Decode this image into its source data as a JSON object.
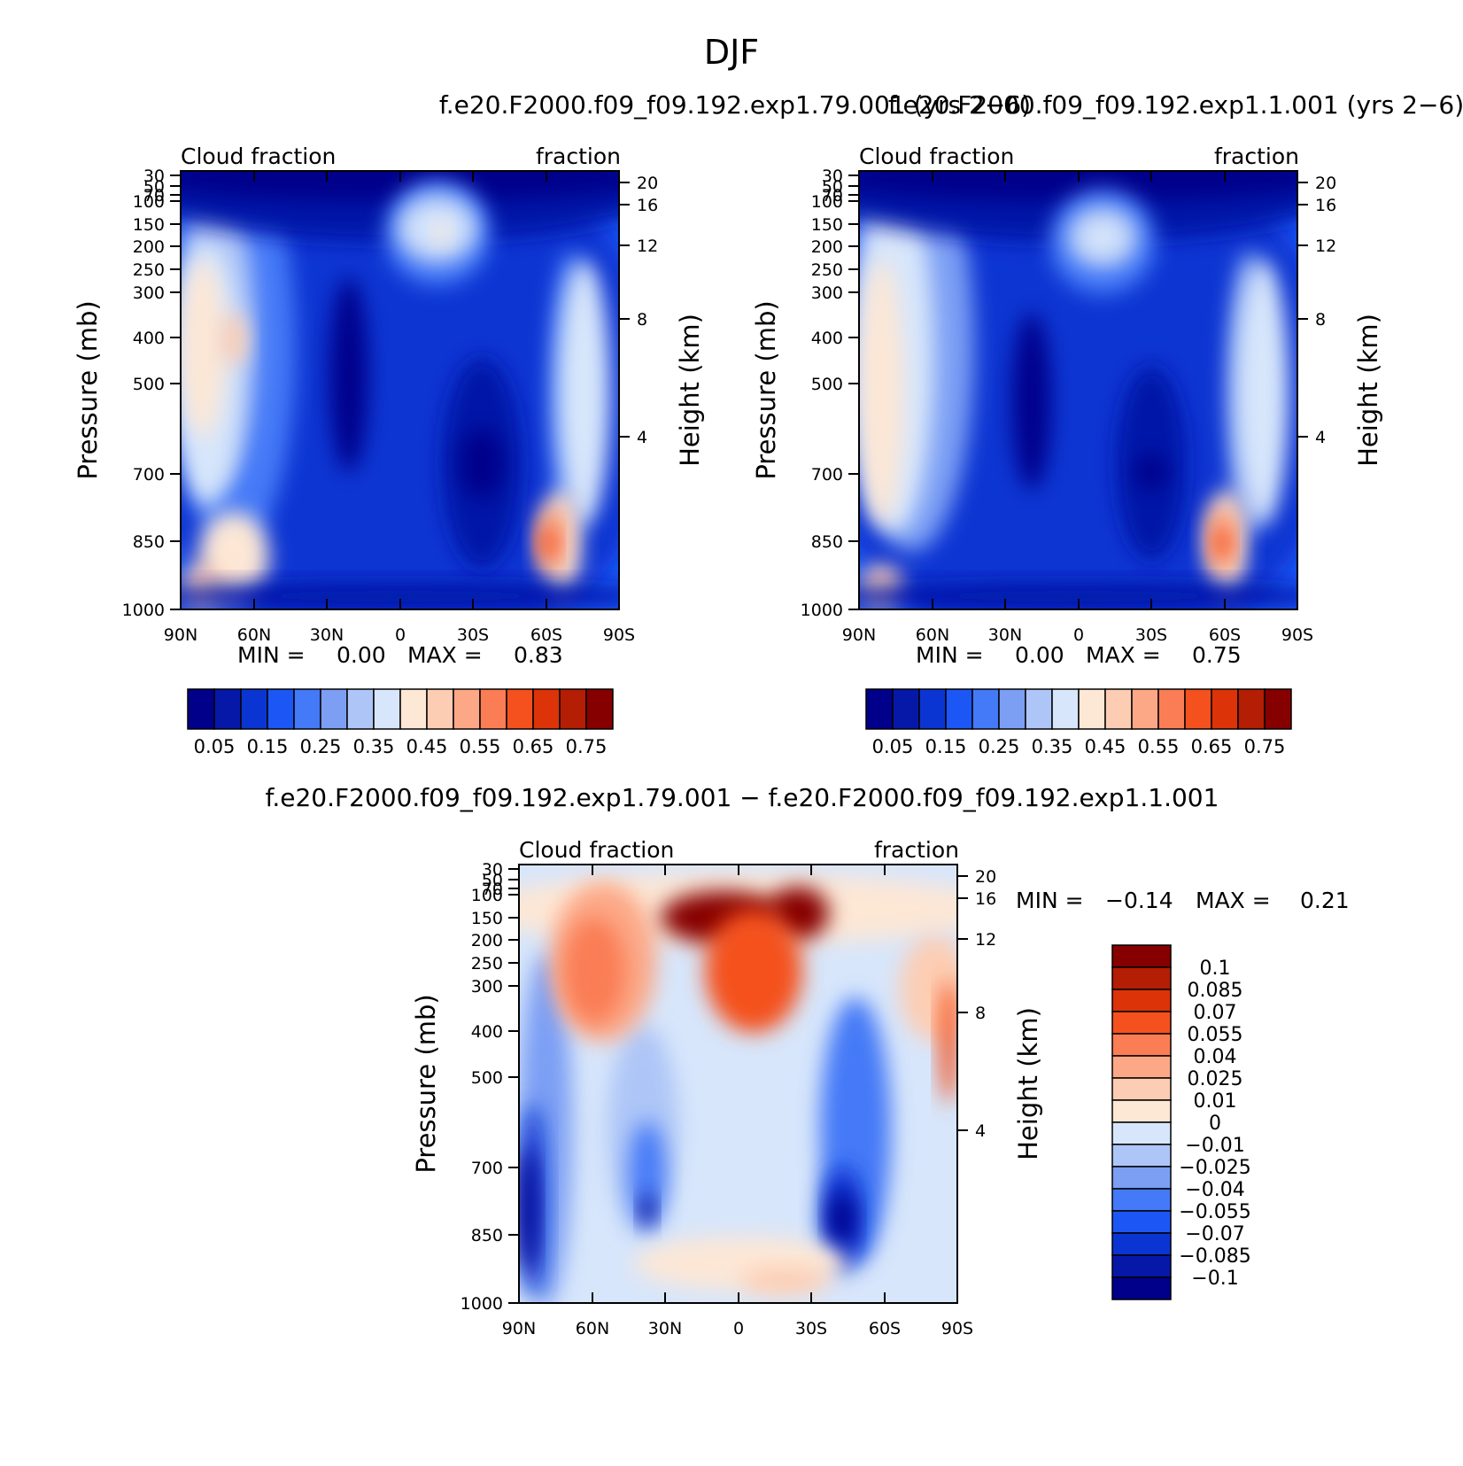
{
  "title": "DJF",
  "colors": {
    "abs_levels": [
      "#00008a",
      "#0618a8",
      "#0b35d2",
      "#1c57f5",
      "#4479f7",
      "#7c9ff4",
      "#aec6f7",
      "#d7e6fb",
      "#fde7d5",
      "#fdcdb3",
      "#fca887",
      "#fa7d55",
      "#f4511f",
      "#dc3309",
      "#b31e04",
      "#860000"
    ],
    "diff_levels": [
      "#00008a",
      "#0618a8",
      "#0b35d2",
      "#1c57f5",
      "#4479f7",
      "#7c9ff4",
      "#aec6f7",
      "#d7e6fb",
      "#fde7d5",
      "#fdcdb3",
      "#fca887",
      "#fa7d55",
      "#f4511f",
      "#dc3309",
      "#b31e04",
      "#860000"
    ]
  },
  "chart_data": [
    {
      "type": "heatmap",
      "panel": "top-left",
      "title": "f.e20.F2000.f09_f09.192.exp1.79.001 (yrs 2−6)",
      "left_label": "Cloud fraction",
      "right_label": "fraction",
      "ylabel": "Pressure (mb)",
      "y2label": "Height (km)",
      "xticks": [
        "90N",
        "60N",
        "30N",
        "0",
        "30S",
        "60S",
        "90S"
      ],
      "yticks": [
        "30",
        "50",
        "70",
        "100",
        "150",
        "200",
        "250",
        "300",
        "400",
        "500",
        "700",
        "850",
        "1000"
      ],
      "y2ticks": [
        "20",
        "16",
        "12",
        "8",
        "4"
      ],
      "xlim": [
        -90,
        90
      ],
      "ylim": [
        30,
        1000
      ],
      "min_label": "MIN =",
      "min_value": "0.00",
      "max_label": "MAX =",
      "max_value": "0.83",
      "colorbar_labels": [
        "0.05",
        "0.15",
        "0.25",
        "0.35",
        "0.45",
        "0.55",
        "0.65",
        "0.75"
      ],
      "levels": [
        0.05,
        0.1,
        0.15,
        0.2,
        0.25,
        0.3,
        0.35,
        0.4,
        0.45,
        0.5,
        0.55,
        0.6,
        0.65,
        0.7,
        0.75
      ]
    },
    {
      "type": "heatmap",
      "panel": "top-right",
      "title": "f.e20.F2000.f09_f09.192.exp1.1.001 (yrs 2−6)",
      "left_label": "Cloud fraction",
      "right_label": "fraction",
      "ylabel": "Pressure (mb)",
      "y2label": "Height (km)",
      "xticks": [
        "90N",
        "60N",
        "30N",
        "0",
        "30S",
        "60S",
        "90S"
      ],
      "yticks": [
        "30",
        "50",
        "70",
        "100",
        "150",
        "200",
        "250",
        "300",
        "400",
        "500",
        "700",
        "850",
        "1000"
      ],
      "y2ticks": [
        "20",
        "16",
        "12",
        "8",
        "4"
      ],
      "xlim": [
        -90,
        90
      ],
      "ylim": [
        30,
        1000
      ],
      "min_label": "MIN =",
      "min_value": "0.00",
      "max_label": "MAX =",
      "max_value": "0.75",
      "colorbar_labels": [
        "0.05",
        "0.15",
        "0.25",
        "0.35",
        "0.45",
        "0.55",
        "0.65",
        "0.75"
      ],
      "levels": [
        0.05,
        0.1,
        0.15,
        0.2,
        0.25,
        0.3,
        0.35,
        0.4,
        0.45,
        0.5,
        0.55,
        0.6,
        0.65,
        0.7,
        0.75
      ]
    },
    {
      "type": "heatmap",
      "panel": "bottom",
      "title": "f.e20.F2000.f09_f09.192.exp1.79.001 − f.e20.F2000.f09_f09.192.exp1.1.001",
      "left_label": "Cloud fraction",
      "right_label": "fraction",
      "ylabel": "Pressure (mb)",
      "y2label": "Height (km)",
      "xticks": [
        "90N",
        "60N",
        "30N",
        "0",
        "30S",
        "60S",
        "90S"
      ],
      "yticks": [
        "30",
        "50",
        "70",
        "100",
        "150",
        "200",
        "250",
        "300",
        "400",
        "500",
        "700",
        "850",
        "1000"
      ],
      "y2ticks": [
        "20",
        "16",
        "12",
        "8",
        "4"
      ],
      "xlim": [
        -90,
        90
      ],
      "ylim": [
        30,
        1000
      ],
      "min_label": "MIN =",
      "min_value": "−0.14",
      "max_label": "MAX =",
      "max_value": "0.21",
      "colorbar_labels": [
        "0.1",
        "0.085",
        "0.07",
        "0.055",
        "0.04",
        "0.025",
        "0.01",
        "0",
        "−0.01",
        "−0.025",
        "−0.04",
        "−0.055",
        "−0.07",
        "−0.085",
        "−0.1"
      ],
      "levels": [
        -0.1,
        -0.085,
        -0.07,
        -0.055,
        -0.04,
        -0.025,
        -0.01,
        0,
        0.01,
        0.025,
        0.04,
        0.055,
        0.07,
        0.085,
        0.1
      ]
    }
  ]
}
